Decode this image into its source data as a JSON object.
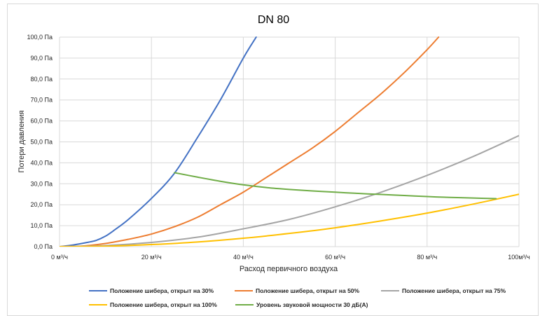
{
  "chart_data": {
    "type": "line",
    "title": "DN 80",
    "xlabel": "Расход первичного воздуха",
    "ylabel": "Потери давления",
    "xlim": [
      0,
      100
    ],
    "ylim": [
      0,
      100
    ],
    "x_ticks": [
      0,
      20,
      40,
      60,
      80,
      100
    ],
    "y_ticks": [
      0,
      10,
      20,
      30,
      40,
      50,
      60,
      70,
      80,
      90,
      100
    ],
    "x_tick_labels": [
      "0 м³/ч",
      "20 м³/ч",
      "40 м³/ч",
      "60 м³/ч",
      "80 м³/ч",
      "100м³/ч"
    ],
    "y_tick_labels": [
      "0,0 Па",
      "10,0 Па",
      "20,0 Па",
      "30,0 Па",
      "40,0 Па",
      "50,0 Па",
      "60,0 Па",
      "70,0 Па",
      "80,0 Па",
      "90,0 Па",
      "100,0 Па"
    ],
    "grid": "both",
    "legend_position": "bottom",
    "series": [
      {
        "name": "Положение шибера, открыт на 30%",
        "color": "#4472c4",
        "x": [
          0,
          3,
          6,
          8,
          10,
          12,
          15,
          20,
          25,
          30,
          35,
          40,
          42.8
        ],
        "y": [
          0,
          0.8,
          2,
          3,
          5,
          8,
          13,
          23,
          35,
          52,
          70,
          90,
          100
        ]
      },
      {
        "name": "Положение шибера, открыт на 50%",
        "color": "#ed7d31",
        "x": [
          0,
          5,
          10,
          15,
          20,
          25,
          30,
          35,
          40,
          45,
          50,
          55,
          60,
          65,
          70,
          75,
          80,
          82.5
        ],
        "y": [
          0,
          0.3,
          1.5,
          3.5,
          6,
          9.5,
          14,
          20,
          26,
          33,
          40,
          47,
          55,
          64,
          73,
          83,
          94,
          100
        ]
      },
      {
        "name": "Положение шибера, открыт на 75%",
        "color": "#a5a5a5",
        "x": [
          0,
          10,
          20,
          30,
          40,
          50,
          60,
          70,
          80,
          90,
          100
        ],
        "y": [
          0,
          0.5,
          2,
          4.5,
          8.5,
          13,
          19,
          26,
          34,
          43,
          53
        ]
      },
      {
        "name": "Положение шибера, открыт на 100%",
        "color": "#ffc000",
        "x": [
          0,
          10,
          20,
          30,
          40,
          50,
          60,
          70,
          80,
          90,
          100
        ],
        "y": [
          0,
          0.2,
          1,
          2.2,
          4,
          6.3,
          9,
          12.3,
          16,
          20.3,
          25
        ]
      },
      {
        "name": "Уровень звуковой мощности 30 дБ(А)",
        "color": "#70ad47",
        "x": [
          25,
          30,
          35,
          40,
          45,
          50,
          55,
          60,
          65,
          70,
          75,
          80,
          85,
          90,
          95
        ],
        "y": [
          35.3,
          33.2,
          31.2,
          29.5,
          28.2,
          27.3,
          26.6,
          26,
          25.4,
          24.9,
          24.4,
          23.9,
          23.5,
          23.2,
          22.9
        ]
      }
    ]
  }
}
